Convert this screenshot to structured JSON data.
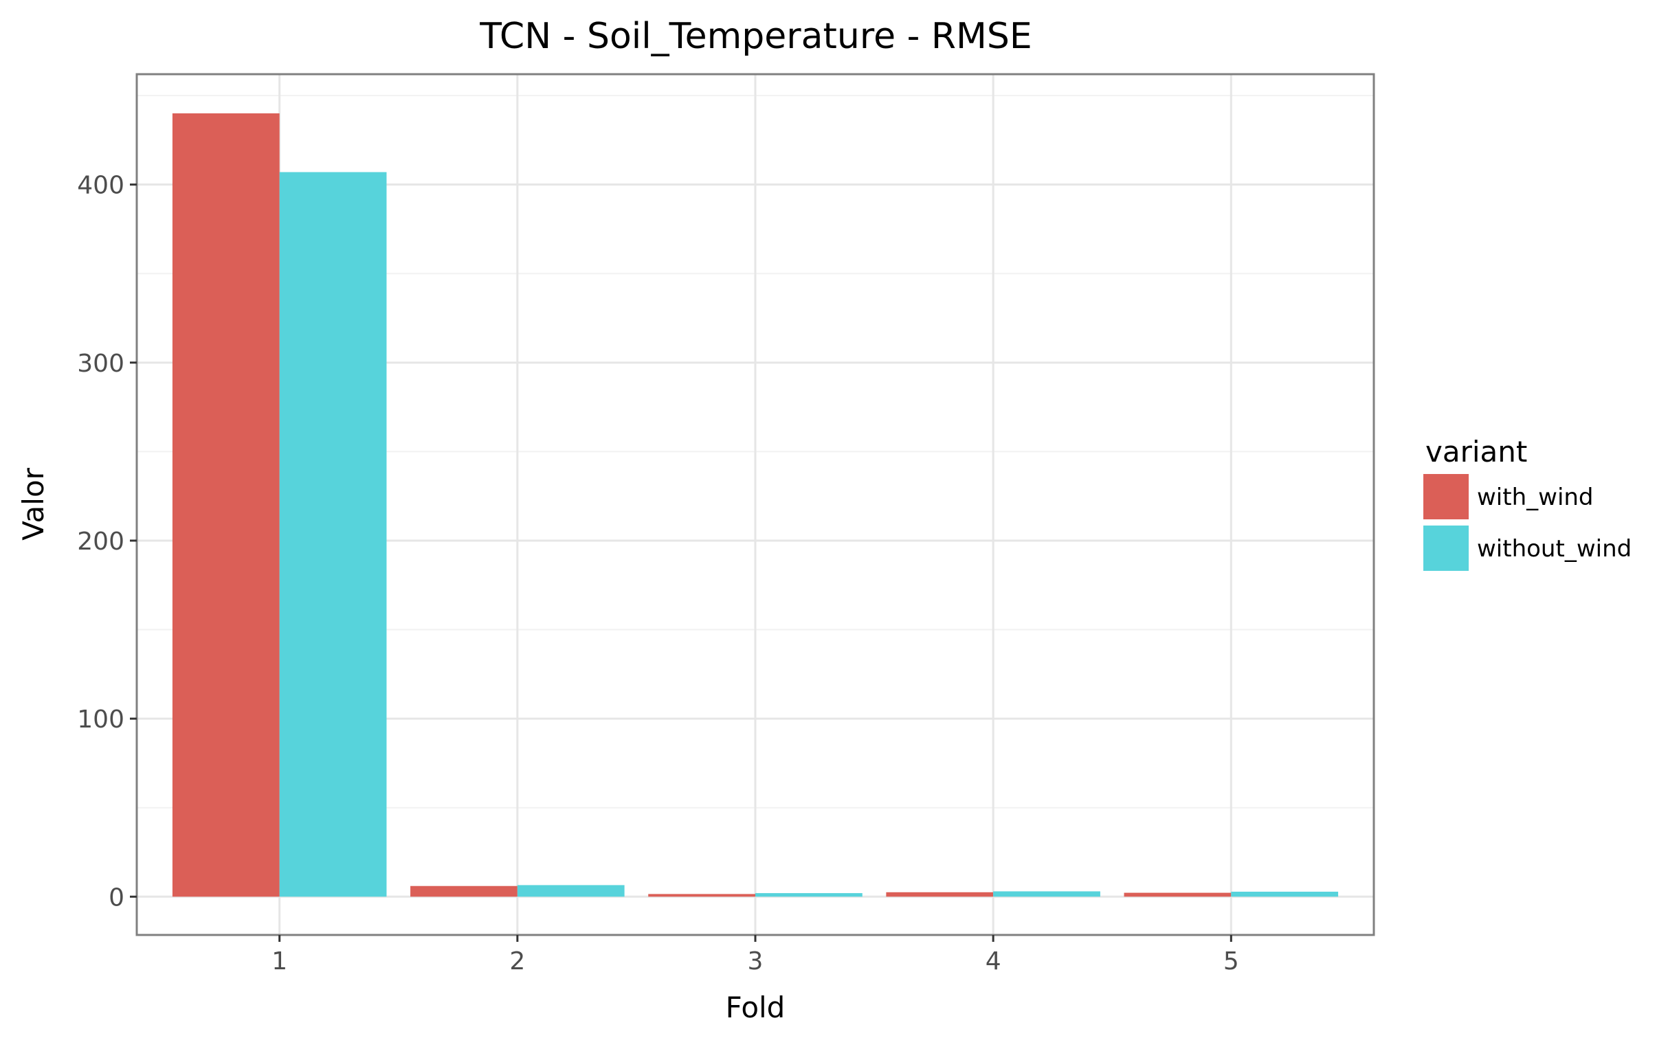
{
  "chart_data": {
    "type": "bar",
    "title": "TCN - Soil_Temperature - RMSE",
    "xlabel": "Fold",
    "ylabel": "Valor",
    "categories": [
      "1",
      "2",
      "3",
      "4",
      "5"
    ],
    "series": [
      {
        "name": "with_wind",
        "color": "#DB5F57",
        "values": [
          440,
          6,
          1.5,
          2.5,
          2.2
        ]
      },
      {
        "name": "without_wind",
        "color": "#57D3DB",
        "values": [
          407,
          6.5,
          2,
          3,
          2.8
        ]
      }
    ],
    "y_ticks": [
      0,
      100,
      200,
      300,
      400
    ],
    "ylim": [
      -21.5,
      462
    ],
    "grid": true,
    "legend": {
      "title": "variant",
      "position": "right"
    }
  }
}
